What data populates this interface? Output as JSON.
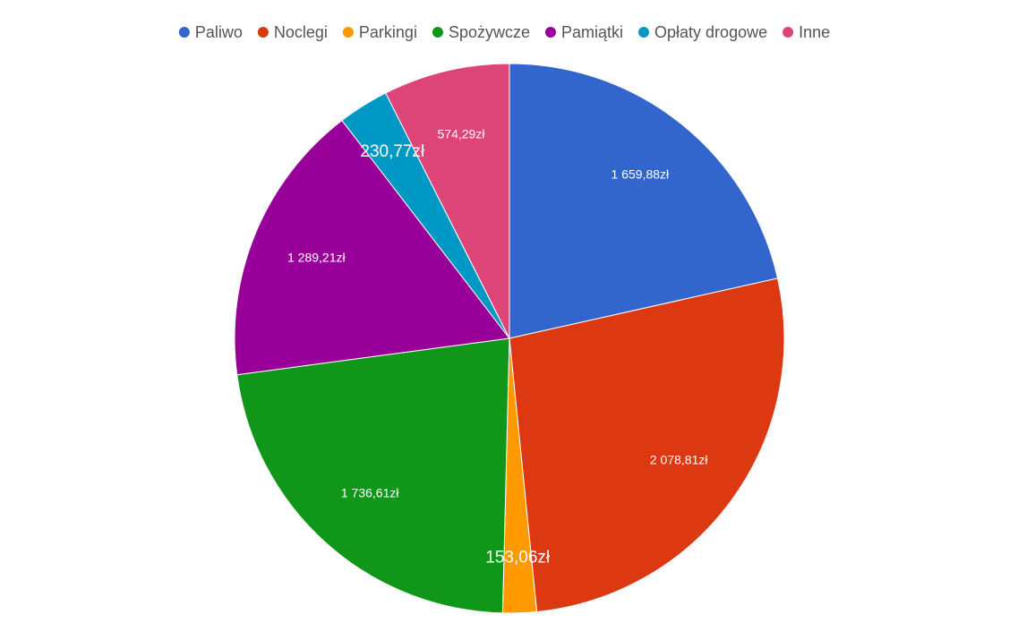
{
  "chart_data": {
    "type": "pie",
    "categories": [
      "Paliwo",
      "Noclegi",
      "Parkingi",
      "Spożywcze",
      "Pamiątki",
      "Opłaty drogowe",
      "Inne"
    ],
    "values": [
      1659.88,
      2078.81,
      153.06,
      1736.61,
      1289.21,
      230.77,
      574.29
    ],
    "value_labels": [
      "1 659,88zł",
      "2 078,81zł",
      "153,06zł",
      "1 736,61zł",
      "1 289,21zł",
      "230,77zł",
      "574,29zł"
    ],
    "colors": [
      "#3366cc",
      "#dc3912",
      "#ff9900",
      "#109618",
      "#990099",
      "#0099c6",
      "#dd4477"
    ],
    "legend": "top"
  }
}
